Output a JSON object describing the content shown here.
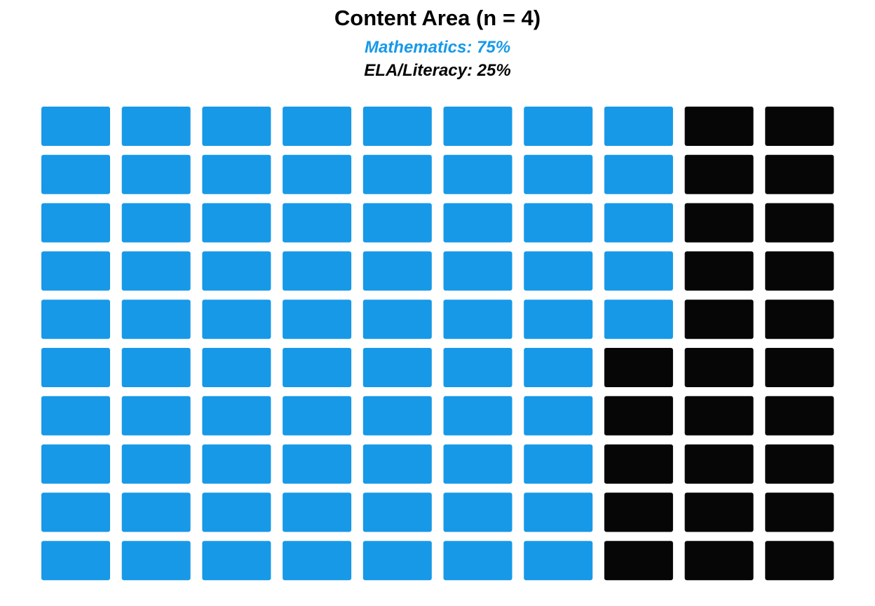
{
  "chart_data": {
    "type": "waffle",
    "title": "Content Area (n = 4)",
    "grid": {
      "rows": 10,
      "columns": 10,
      "fill_order": "column-major, top-to-bottom"
    },
    "series": [
      {
        "name": "Mathematics",
        "value_label": "Mathematics: 75%",
        "value": 75,
        "color": "#1799E8"
      },
      {
        "name": "ELA/Literacy",
        "value_label": "ELA/Literacy: 25%",
        "value": 25,
        "color": "#060606"
      }
    ],
    "legend_placement": "top-center"
  }
}
